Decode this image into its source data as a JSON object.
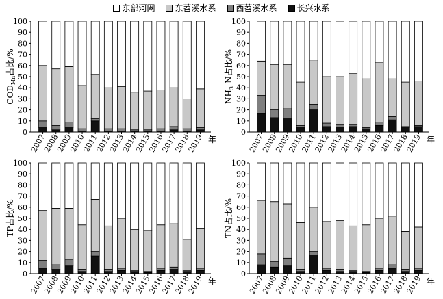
{
  "legend": [
    {
      "label": "东部河网",
      "color": "#ffffff"
    },
    {
      "label": "东苕溪水系",
      "color": "#c8c8c8"
    },
    {
      "label": "西苕溪水系",
      "color": "#7f7f7f"
    },
    {
      "label": "长兴水系",
      "color": "#111111"
    }
  ],
  "chart_data": [
    {
      "type": "bar",
      "stacked": true,
      "ylabel": "COD_Mn占比/%",
      "ylabel_html": [
        "COD",
        "Mn",
        "占比/%"
      ],
      "x_unit": "年",
      "ylim": [
        0,
        100
      ],
      "yticks": [
        0,
        10,
        20,
        30,
        40,
        50,
        60,
        70,
        80,
        90,
        100
      ],
      "categories": [
        "2007",
        "2008",
        "2009",
        "2010",
        "2011",
        "2012",
        "2013",
        "2014",
        "2015",
        "2016",
        "2017",
        "2018",
        "2019"
      ],
      "series": [
        {
          "name": "长兴水系",
          "values": [
            4,
            2,
            4,
            1,
            10,
            1,
            1,
            1,
            1,
            1,
            2,
            1,
            2
          ]
        },
        {
          "name": "西苕溪水系",
          "values": [
            6,
            4,
            5,
            2,
            2,
            2,
            2,
            1,
            1,
            2,
            3,
            2,
            2
          ]
        },
        {
          "name": "东苕溪水系",
          "values": [
            50,
            51,
            50,
            39,
            40,
            37,
            38,
            34,
            35,
            35,
            35,
            27,
            35
          ]
        },
        {
          "name": "东部河网",
          "values": [
            40,
            43,
            41,
            58,
            48,
            60,
            59,
            64,
            63,
            62,
            60,
            70,
            61
          ]
        }
      ]
    },
    {
      "type": "bar",
      "stacked": true,
      "ylabel": "NH3-N占比/%",
      "ylabel_html": [
        "NH",
        "3",
        "-N占比/%"
      ],
      "x_unit": "年",
      "ylim": [
        0,
        100
      ],
      "yticks": [
        0,
        10,
        20,
        30,
        40,
        50,
        60,
        70,
        80,
        90,
        100
      ],
      "categories": [
        "2007",
        "2008",
        "2009",
        "2010",
        "2011",
        "2012",
        "2013",
        "2014",
        "2015",
        "2016",
        "2017",
        "2018",
        "2019"
      ],
      "series": [
        {
          "name": "长兴水系",
          "values": [
            17,
            13,
            12,
            4,
            20,
            5,
            4,
            5,
            3,
            6,
            11,
            4,
            5
          ]
        },
        {
          "name": "西苕溪水系",
          "values": [
            16,
            7,
            9,
            2,
            5,
            3,
            3,
            2,
            1,
            3,
            3,
            1,
            1
          ]
        },
        {
          "name": "东苕溪水系",
          "values": [
            31,
            41,
            40,
            39,
            40,
            42,
            43,
            46,
            44,
            54,
            34,
            40,
            40
          ]
        },
        {
          "name": "东部河网",
          "values": [
            36,
            39,
            39,
            55,
            35,
            50,
            50,
            47,
            52,
            37,
            52,
            55,
            54
          ]
        }
      ]
    },
    {
      "type": "bar",
      "stacked": true,
      "ylabel": "TP占比/%",
      "ylabel_html": [
        "TP占比/%"
      ],
      "x_unit": "年",
      "ylim": [
        0,
        100
      ],
      "yticks": [
        0,
        10,
        20,
        30,
        40,
        50,
        60,
        70,
        80,
        90,
        100
      ],
      "categories": [
        "2007",
        "2008",
        "2009",
        "2010",
        "2011",
        "2012",
        "2013",
        "2014",
        "2015",
        "2016",
        "2017",
        "2018",
        "2019"
      ],
      "series": [
        {
          "name": "长兴水系",
          "values": [
            5,
            4,
            7,
            2,
            16,
            2,
            3,
            2,
            1,
            3,
            4,
            2,
            3
          ]
        },
        {
          "name": "西苕溪水系",
          "values": [
            7,
            4,
            6,
            2,
            4,
            2,
            2,
            1,
            1,
            2,
            2,
            1,
            2
          ]
        },
        {
          "name": "东苕溪水系",
          "values": [
            45,
            51,
            46,
            40,
            47,
            39,
            45,
            37,
            37,
            39,
            39,
            28,
            36
          ]
        },
        {
          "name": "东部河网",
          "values": [
            43,
            41,
            41,
            56,
            33,
            57,
            50,
            60,
            61,
            56,
            55,
            69,
            59
          ]
        }
      ]
    },
    {
      "type": "bar",
      "stacked": true,
      "ylabel": "TN占比/%",
      "ylabel_html": [
        "TN占比/%"
      ],
      "x_unit": "年",
      "ylim": [
        0,
        100
      ],
      "yticks": [
        0,
        10,
        20,
        30,
        40,
        50,
        60,
        70,
        80,
        90,
        100
      ],
      "categories": [
        "2007",
        "2008",
        "2009",
        "2010",
        "2011",
        "2012",
        "2013",
        "2014",
        "2015",
        "2016",
        "2017",
        "2018",
        "2019"
      ],
      "series": [
        {
          "name": "长兴水系",
          "values": [
            8,
            6,
            7,
            2,
            17,
            3,
            2,
            2,
            1,
            3,
            5,
            2,
            3
          ]
        },
        {
          "name": "西苕溪水系",
          "values": [
            10,
            5,
            7,
            2,
            3,
            2,
            2,
            1,
            1,
            2,
            3,
            2,
            2
          ]
        },
        {
          "name": "东苕溪水系",
          "values": [
            48,
            54,
            49,
            42,
            40,
            42,
            44,
            40,
            42,
            45,
            44,
            34,
            37
          ]
        },
        {
          "name": "东部河网",
          "values": [
            34,
            35,
            37,
            54,
            40,
            53,
            52,
            57,
            56,
            50,
            48,
            62,
            58
          ]
        }
      ]
    }
  ]
}
